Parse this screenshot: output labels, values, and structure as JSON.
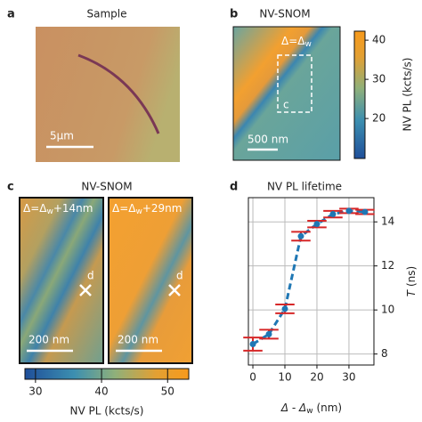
{
  "panels": {
    "a": {
      "label": "a",
      "title": "Sample",
      "scale": "5μm"
    },
    "b": {
      "label": "b",
      "title": "NV-SNOM",
      "delta": {
        "main": "Δ=Δ",
        "sub": "w"
      },
      "box": "c",
      "scale": "500 nm",
      "colorbar": {
        "label": "NV PL (kcts/s)",
        "lim": [
          9.8,
          42.3
        ],
        "ticks": [
          20,
          30,
          40
        ]
      }
    },
    "c": {
      "label": "c",
      "title": "NV-SNOM",
      "images": [
        {
          "delta": {
            "main": "Δ=Δ",
            "sub": "w",
            "rest": "+14nm"
          },
          "marker": "d",
          "scale": "200 nm"
        },
        {
          "delta": {
            "main": "Δ=Δ",
            "sub": "w",
            "rest": "+29nm"
          },
          "marker": "d",
          "scale": "200 nm"
        }
      ],
      "colorbar": {
        "label": "NV PL (kcts/s)",
        "lim": [
          28.4,
          53.2
        ],
        "ticks": [
          30,
          40,
          50
        ]
      }
    },
    "d": {
      "label": "d"
    }
  },
  "chart_data": {
    "type": "line",
    "title": "NV PL lifetime",
    "x": [
      0,
      5,
      10,
      15,
      20,
      25,
      30,
      35
    ],
    "series": [
      {
        "color": "#1f77b4",
        "values": [
          8.45,
          8.9,
          10.05,
          13.35,
          13.9,
          14.35,
          14.5,
          14.45
        ],
        "errors": [
          0.3,
          0.2,
          0.2,
          0.2,
          0.15,
          0.15,
          0.1,
          0.1
        ],
        "error_color": "#d62728"
      }
    ],
    "xlim": [
      -1.4,
      37.8
    ],
    "ylim": [
      7.5,
      15.1
    ],
    "xticks": [
      0,
      10,
      20,
      30
    ],
    "yticks": [
      8,
      10,
      12,
      14
    ],
    "grid": true,
    "xlabel": {
      "main": "Δ - Δ",
      "sub": "w",
      "rest": " (nm)"
    },
    "ylabel": {
      "main": "T",
      "rest": " (ns)"
    }
  }
}
